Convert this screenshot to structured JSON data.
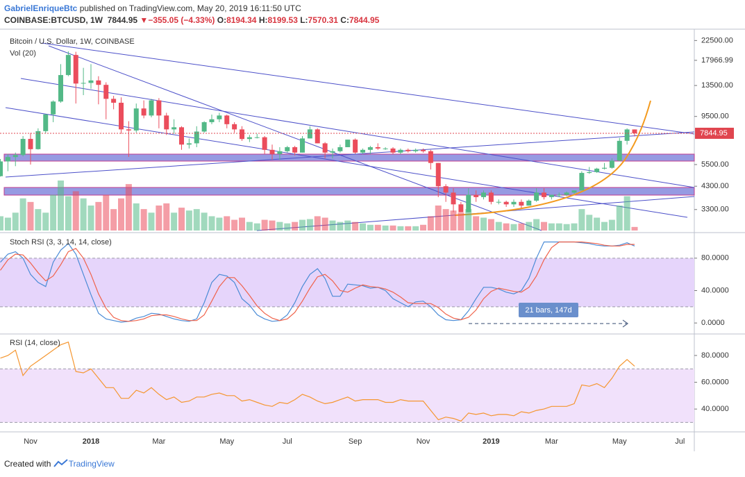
{
  "header": {
    "author": "GabrielEnriqueBtc",
    "published": "published on TradingView.com, May 20, 2019 16:11:50 UTC",
    "symbol": "COINBASE:BTCUSD, 1W",
    "price": "7844.95",
    "arrow": "▼",
    "change": "−355.05 (−4.33%)",
    "ohlc": [
      {
        "label": "O:",
        "value": "8194.34"
      },
      {
        "label": "H:",
        "value": "8199.53"
      },
      {
        "label": "L:",
        "value": "7570.31"
      },
      {
        "label": "C:",
        "value": "7844.95"
      }
    ]
  },
  "footer": {
    "created": "Created with",
    "brand": "TradingView"
  },
  "chart_data": [
    {
      "type": "candlestick",
      "title": "Bitcoin / U.S. Dollar, 1W, COINBASE",
      "subtitle": "Vol (20)",
      "log_scale": true,
      "up_color": "#53b987",
      "down_color": "#eb4d5c",
      "categories": [
        null,
        null,
        null,
        null,
        "Nov",
        null,
        null,
        null,
        null,
        null,
        null,
        null,
        "2018",
        null,
        null,
        null,
        null,
        null,
        null,
        null,
        null,
        "Mar",
        null,
        null,
        null,
        null,
        null,
        null,
        null,
        null,
        "May",
        null,
        null,
        null,
        null,
        null,
        null,
        null,
        "Jul",
        null,
        null,
        null,
        null,
        null,
        null,
        null,
        null,
        "Sep",
        null,
        null,
        null,
        null,
        null,
        null,
        null,
        null,
        "Nov",
        null,
        null,
        null,
        null,
        null,
        null,
        null,
        null,
        "2019",
        null,
        null,
        null,
        null,
        null,
        null,
        null,
        "Mar",
        null,
        null,
        null,
        null,
        null,
        null,
        null,
        null,
        "May",
        null,
        null,
        null,
        null,
        null,
        null,
        null,
        "Jul"
      ],
      "open": [
        4820,
        5700,
        5990,
        6130,
        7360,
        6550,
        8040,
        9720,
        11250,
        15200,
        19100,
        13800,
        13900,
        14300,
        13600,
        11600,
        11100,
        8200,
        8100,
        10400,
        9600,
        11400,
        9600,
        8200,
        8400,
        6900,
        7000,
        8000,
        8900,
        9200,
        9600,
        8700,
        8200,
        7350,
        7500,
        7500,
        6500,
        6200,
        6400,
        6700,
        6300,
        7400,
        8200,
        7000,
        6300,
        6400,
        6700,
        7300,
        6300,
        6500,
        6700,
        6600,
        6600,
        6300,
        6500,
        6400,
        6500,
        6400,
        5600,
        4300,
        4000,
        3500,
        3200,
        3900,
        3800,
        4000,
        3600,
        3600,
        3500,
        3600,
        3450,
        3650,
        4000,
        3800,
        3900,
        3900,
        4000,
        4100,
        5000,
        5050,
        5250,
        5300,
        5750,
        7200,
        8194.34,
        null,
        null,
        null,
        null,
        null,
        null
      ],
      "high": [
        5860,
        6200,
        6300,
        7600,
        7880,
        8300,
        9750,
        11400,
        17200,
        19900,
        19800,
        16500,
        17200,
        15000,
        14000,
        12000,
        11800,
        9000,
        11000,
        11400,
        11600,
        11700,
        9900,
        9200,
        8500,
        7400,
        8500,
        9000,
        9700,
        9900,
        9700,
        8900,
        8500,
        7700,
        7800,
        7600,
        6900,
        6700,
        6800,
        6800,
        7600,
        8500,
        8300,
        7100,
        6600,
        6900,
        7300,
        7400,
        6600,
        6800,
        7000,
        6700,
        6700,
        6600,
        6600,
        6600,
        6600,
        6500,
        5600,
        4400,
        4200,
        3600,
        4200,
        4100,
        4100,
        4100,
        3700,
        3650,
        3700,
        3700,
        3700,
        4200,
        4200,
        3900,
        4000,
        4050,
        4100,
        5100,
        5350,
        5300,
        5600,
        5900,
        7450,
        8300,
        8199.53,
        null,
        null,
        null,
        null,
        null,
        null
      ],
      "low": [
        4800,
        5100,
        5400,
        6030,
        5500,
        6520,
        7850,
        8900,
        11100,
        15000,
        11000,
        12100,
        13000,
        10900,
        9200,
        10300,
        7800,
        6000,
        7900,
        9300,
        9400,
        8300,
        7700,
        7800,
        6500,
        6600,
        6700,
        7900,
        8700,
        8900,
        8300,
        7900,
        7200,
        7100,
        7400,
        6200,
        5800,
        5800,
        6300,
        6100,
        6300,
        7400,
        7000,
        5900,
        5900,
        6300,
        6700,
        6200,
        6200,
        6200,
        6500,
        6500,
        6200,
        6200,
        6300,
        6300,
        6300,
        5200,
        3800,
        3600,
        3200,
        3200,
        3200,
        3600,
        3700,
        3500,
        3500,
        3400,
        3400,
        3350,
        3450,
        3600,
        3700,
        3700,
        3800,
        3850,
        3950,
        4100,
        4950,
        5000,
        5200,
        5250,
        5700,
        6900,
        7570.31,
        null,
        null,
        null,
        null,
        null,
        null
      ],
      "close": [
        5700,
        5990,
        6130,
        7360,
        6550,
        8040,
        9720,
        11250,
        15200,
        19100,
        13800,
        13900,
        14300,
        13600,
        11600,
        11100,
        8200,
        8100,
        10400,
        9600,
        11400,
        9600,
        8200,
        8400,
        6900,
        7000,
        8000,
        8900,
        9200,
        9600,
        8700,
        8200,
        7350,
        7500,
        7500,
        6500,
        6200,
        6400,
        6700,
        6300,
        7400,
        8200,
        7000,
        6300,
        6400,
        6700,
        7300,
        6300,
        6500,
        6700,
        6600,
        6600,
        6300,
        6500,
        6400,
        6500,
        6400,
        5600,
        4300,
        4000,
        3500,
        3200,
        3900,
        3800,
        4000,
        3600,
        3600,
        3500,
        3600,
        3450,
        3650,
        4000,
        3800,
        3900,
        3900,
        4000,
        4100,
        5000,
        5050,
        5250,
        5300,
        5750,
        7200,
        8194.34,
        7844.95,
        null,
        null,
        null,
        null,
        null,
        null
      ],
      "volume": [
        20,
        18,
        25,
        45,
        40,
        30,
        25,
        50,
        70,
        48,
        55,
        45,
        35,
        40,
        50,
        30,
        45,
        65,
        38,
        30,
        25,
        35,
        38,
        25,
        32,
        28,
        30,
        25,
        20,
        18,
        20,
        15,
        18,
        12,
        10,
        15,
        14,
        12,
        10,
        12,
        15,
        16,
        20,
        18,
        14,
        12,
        14,
        12,
        10,
        8,
        8,
        7,
        7,
        6,
        6,
        6,
        8,
        20,
        35,
        30,
        28,
        25,
        30,
        20,
        18,
        16,
        12,
        10,
        9,
        10,
        12,
        16,
        12,
        10,
        10,
        9,
        10,
        30,
        22,
        18,
        12,
        15,
        35,
        48,
        5,
        null,
        null,
        null,
        null,
        null,
        null
      ],
      "ylim": [
        2600,
        25000
      ],
      "yticks": [
        {
          "value": 22500,
          "label": "22500.00"
        },
        {
          "value": 17966.99,
          "label": "17966.99"
        },
        {
          "value": 13500,
          "label": "13500.00"
        },
        {
          "value": 9500,
          "label": "9500.00"
        },
        {
          "value": 5500,
          "label": "5500.00"
        },
        {
          "value": 4300,
          "label": "4300.00"
        },
        {
          "value": 3300,
          "label": "3300.00"
        }
      ]
    },
    {
      "type": "line",
      "title": "Stoch RSI (3, 3, 14, 14, close)",
      "annotation": "21 bars, 147d",
      "bands": [
        20,
        80
      ],
      "band_color": "#e6d5fb",
      "series": [
        {
          "color": "#4a8bd6",
          "values": [
            75,
            85,
            88,
            80,
            60,
            50,
            45,
            75,
            90,
            98,
            85,
            60,
            35,
            12,
            5,
            3,
            1,
            2,
            6,
            8,
            12,
            11,
            8,
            5,
            3,
            2,
            5,
            25,
            50,
            60,
            58,
            50,
            30,
            22,
            10,
            5,
            2,
            3,
            10,
            25,
            45,
            60,
            67,
            55,
            33,
            33,
            48,
            47,
            46,
            43,
            44,
            40,
            30,
            25,
            20,
            26,
            27,
            20,
            10,
            4,
            3,
            4,
            15,
            30,
            44,
            44,
            42,
            38,
            36,
            40,
            55,
            80,
            100,
            100,
            100,
            100,
            100,
            99,
            98,
            96,
            95,
            95,
            96,
            99,
            95,
            null,
            null,
            null,
            null,
            null,
            null
          ]
        },
        {
          "color": "#f0624a",
          "values": [
            65,
            78,
            85,
            84,
            74,
            62,
            52,
            58,
            72,
            88,
            92,
            80,
            60,
            36,
            18,
            7,
            3,
            2,
            3,
            5,
            9,
            10,
            10,
            8,
            5,
            3,
            3,
            10,
            27,
            45,
            56,
            56,
            46,
            34,
            21,
            12,
            6,
            3,
            5,
            13,
            27,
            43,
            57,
            60,
            52,
            40,
            38,
            43,
            47,
            45,
            44,
            42,
            38,
            32,
            25,
            24,
            24,
            24,
            19,
            11,
            6,
            4,
            7,
            16,
            30,
            39,
            43,
            41,
            39,
            38,
            44,
            58,
            78,
            93,
            100,
            100,
            100,
            100,
            99,
            98,
            96,
            95,
            95,
            97,
            97,
            null,
            null,
            null,
            null,
            null,
            null
          ]
        }
      ],
      "ylim": [
        -11,
        109
      ],
      "yticks": [
        {
          "value": 80,
          "label": "80.0000"
        },
        {
          "value": 40,
          "label": "40.0000"
        },
        {
          "value": 0,
          "label": "0.0000"
        }
      ]
    },
    {
      "type": "line",
      "title": "RSI (14, close)",
      "bands": [
        30,
        70
      ],
      "band_color": "#f1e1fb",
      "series": [
        {
          "color": "#f5962f",
          "values": [
            78,
            80,
            84,
            65,
            72,
            76,
            80,
            84,
            88,
            90,
            68,
            67,
            70,
            63,
            56,
            56,
            48,
            48,
            54,
            52,
            56,
            51,
            47,
            49,
            45,
            46,
            49,
            49,
            51,
            52,
            50,
            50,
            46,
            47,
            45,
            43,
            42,
            45,
            44,
            47,
            51,
            49,
            46,
            44,
            45,
            47,
            49,
            46,
            47,
            47,
            47,
            45,
            45,
            47,
            46,
            46,
            46,
            39,
            32,
            34,
            33,
            31,
            37,
            36,
            37,
            35,
            36,
            36,
            35,
            38,
            37,
            39,
            40,
            42,
            42,
            42,
            44,
            58,
            57,
            59,
            56,
            63,
            72,
            77,
            72,
            null,
            null,
            null,
            null,
            null,
            null
          ]
        }
      ],
      "ylim": [
        24,
        94.5
      ],
      "yticks": [
        {
          "value": 80,
          "label": "80.0000"
        },
        {
          "value": 60,
          "label": "60.0000"
        },
        {
          "value": 40,
          "label": "40.0000"
        }
      ]
    }
  ]
}
